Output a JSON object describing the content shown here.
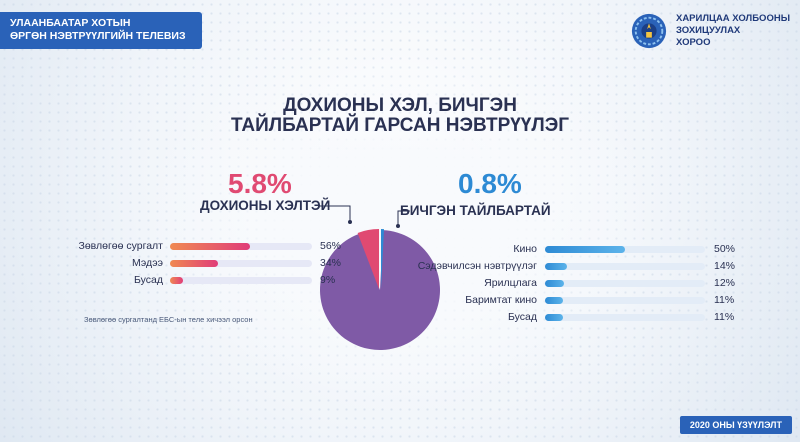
{
  "brand_left": {
    "line1": "УЛААНБААТАР ХОТЫН",
    "line2": "ӨРГӨН НЭВТРҮҮЛГИЙН ТЕЛЕВИЗ"
  },
  "brand_right": {
    "line1": "ХАРИЛЦАА ХОЛБООНЫ",
    "line2": "ЗОХИЦУУЛАХ",
    "line3": "ХОРОО"
  },
  "colors": {
    "pink": "#e04a72",
    "blue": "#2d8ad4",
    "purple": "#7f5aa6",
    "banner": "#2a62b8"
  },
  "chart_data": {
    "type": "pie",
    "title": [
      "ДОХИОНЫ ХЭЛ, БИЧГЭН",
      "ТАЙЛБАРТАЙ ГАРСАН НЭВТРҮҮЛЭГ"
    ],
    "slices": [
      {
        "name": "ДОХИОНЫ ХЭЛТЭЙ",
        "value": 5.8,
        "label": "5.8%"
      },
      {
        "name": "БИЧГЭН ТАЙЛБАРТАЙ",
        "value": 0.8,
        "label": "0.8%"
      },
      {
        "name": "",
        "value": 93.4
      }
    ],
    "breakdowns": [
      {
        "category": "ДОХИОНЫ ХЭЛТЭЙ",
        "items": [
          {
            "label": "Зөвлөгөө сургалт",
            "value": 56,
            "display": "56%"
          },
          {
            "label": "Мэдээ",
            "value": 34,
            "display": "34%"
          },
          {
            "label": "Бусад",
            "value": 9,
            "display": "9%"
          }
        ]
      },
      {
        "category": "БИЧГЭН ТАЙЛБАРТАЙ",
        "items": [
          {
            "label": "Кино",
            "value": 50,
            "display": "50%"
          },
          {
            "label": "Сэдэвчилсэн нэвтрүүлэг",
            "value": 14,
            "display": "14%"
          },
          {
            "label": "Ярилцлага",
            "value": 12,
            "display": "12%"
          },
          {
            "label": "Баримтат кино",
            "value": 11,
            "display": "11%"
          },
          {
            "label": "Бусад",
            "value": 11,
            "display": "11%"
          }
        ]
      }
    ],
    "note": "Зөвлөгөө сургалтанд ЕБС-ын теле хичээл орсон"
  },
  "footer": {
    "year_label": "2020 ОНЫ ҮЗҮҮЛЭЛТ"
  }
}
